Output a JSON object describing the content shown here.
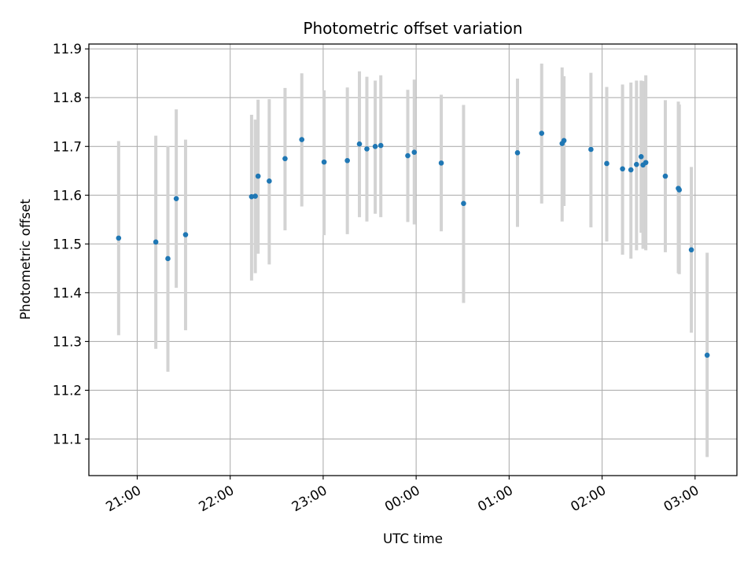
{
  "chart_data": {
    "type": "scatter",
    "title": "Photometric offset variation",
    "xlabel": "UTC time",
    "ylabel": "Photometric offset",
    "grid": true,
    "legend": "none",
    "x_unit": "hours since midnight UTC (negative = previous evening)",
    "xlim": [
      -3.52,
      3.45
    ],
    "ylim": [
      11.025,
      11.91
    ],
    "xticks": [
      -3,
      -2,
      -1,
      0,
      1,
      2,
      3
    ],
    "xtick_labels": [
      "21:00",
      "22:00",
      "23:00",
      "00:00",
      "01:00",
      "02:00",
      "03:00"
    ],
    "yticks": [
      11.1,
      11.2,
      11.3,
      11.4,
      11.5,
      11.6,
      11.7,
      11.8,
      11.9
    ],
    "ytick_labels": [
      "11.1",
      "11.2",
      "11.3",
      "11.4",
      "11.5",
      "11.6",
      "11.7",
      "11.8",
      "11.9"
    ],
    "colors": {
      "marker": "#1f77b4",
      "errorbar": "#d3d3d3",
      "grid": "#b0b0b0"
    },
    "series": [
      {
        "x": [
          -3.2,
          -2.8,
          -2.67,
          -2.58,
          -2.48,
          -1.77,
          -1.73,
          -1.7,
          -1.58,
          -1.41,
          -1.23,
          -0.99,
          -0.74,
          -0.61,
          -0.53,
          -0.44,
          -0.38,
          -0.09,
          -0.02,
          0.27,
          0.51,
          1.09,
          1.35,
          1.57,
          1.59,
          1.88,
          2.05,
          2.22,
          2.31,
          2.37,
          2.42,
          2.44,
          2.47,
          2.68,
          2.82,
          2.83,
          2.96,
          3.13
        ],
        "y": [
          11.512,
          11.504,
          11.47,
          11.593,
          11.519,
          11.597,
          11.598,
          11.639,
          11.629,
          11.675,
          11.714,
          11.668,
          11.671,
          11.705,
          11.695,
          11.7,
          11.702,
          11.681,
          11.688,
          11.666,
          11.583,
          11.687,
          11.727,
          11.706,
          11.712,
          11.694,
          11.665,
          11.654,
          11.652,
          11.663,
          11.679,
          11.662,
          11.667,
          11.639,
          11.614,
          11.611,
          11.488,
          11.272
        ],
        "err_low": [
          11.313,
          11.285,
          11.238,
          11.41,
          11.323,
          11.425,
          11.44,
          11.48,
          11.458,
          11.528,
          11.577,
          11.518,
          11.52,
          11.555,
          11.546,
          11.562,
          11.555,
          11.545,
          11.54,
          11.526,
          11.379,
          11.535,
          11.583,
          11.546,
          11.578,
          11.534,
          11.505,
          11.478,
          11.47,
          11.487,
          11.523,
          11.49,
          11.487,
          11.483,
          11.44,
          11.438,
          11.318,
          11.063
        ],
        "err_high": [
          11.711,
          11.722,
          11.701,
          11.776,
          11.714,
          11.765,
          11.755,
          11.796,
          11.797,
          11.82,
          11.85,
          11.815,
          11.821,
          11.854,
          11.843,
          11.835,
          11.846,
          11.816,
          11.837,
          11.806,
          11.785,
          11.839,
          11.87,
          11.862,
          11.844,
          11.851,
          11.822,
          11.827,
          11.831,
          11.835,
          11.835,
          11.834,
          11.846,
          11.795,
          11.792,
          11.786,
          11.658,
          11.482
        ]
      }
    ]
  }
}
